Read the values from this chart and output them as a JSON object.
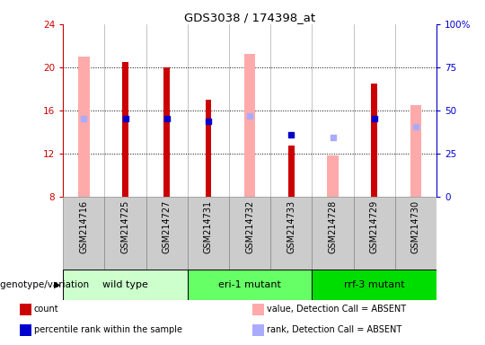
{
  "title": "GDS3038 / 174398_at",
  "samples": [
    "GSM214716",
    "GSM214725",
    "GSM214727",
    "GSM214731",
    "GSM214732",
    "GSM214733",
    "GSM214728",
    "GSM214729",
    "GSM214730"
  ],
  "groups": [
    {
      "label": "wild type",
      "indices": [
        0,
        1,
        2
      ],
      "color": "#ccffcc"
    },
    {
      "label": "eri-1 mutant",
      "indices": [
        3,
        4,
        5
      ],
      "color": "#66ff66"
    },
    {
      "label": "rrf-3 mutant",
      "indices": [
        6,
        7,
        8
      ],
      "color": "#00dd00"
    }
  ],
  "count": [
    null,
    20.5,
    20.0,
    17.0,
    null,
    12.7,
    null,
    18.5,
    null
  ],
  "percentile_rank": [
    null,
    15.2,
    15.2,
    15.0,
    null,
    13.7,
    null,
    15.2,
    null
  ],
  "value_absent": [
    21.0,
    null,
    null,
    null,
    21.2,
    null,
    11.8,
    null,
    16.5
  ],
  "rank_absent": [
    15.2,
    null,
    null,
    null,
    15.5,
    null,
    13.5,
    null,
    14.5
  ],
  "ylim_left": [
    8,
    24
  ],
  "yticks_left": [
    8,
    12,
    16,
    20,
    24
  ],
  "ylim_right": [
    0,
    100
  ],
  "yticks_right": [
    0,
    25,
    50,
    75,
    100
  ],
  "y_right_labels": [
    "0",
    "25",
    "50",
    "75",
    "100%"
  ],
  "count_color": "#cc0000",
  "percentile_color": "#0000cc",
  "value_absent_color": "#ffaaaa",
  "rank_absent_color": "#aaaaff",
  "bar_width": 0.32,
  "axis_color_left": "#cc0000",
  "axis_color_right": "#0000cc",
  "sample_box_color": "#cccccc",
  "legend_items": [
    {
      "color": "#cc0000",
      "label": "count"
    },
    {
      "color": "#0000cc",
      "label": "percentile rank within the sample"
    },
    {
      "color": "#ffaaaa",
      "label": "value, Detection Call = ABSENT"
    },
    {
      "color": "#aaaaff",
      "label": "rank, Detection Call = ABSENT"
    }
  ]
}
